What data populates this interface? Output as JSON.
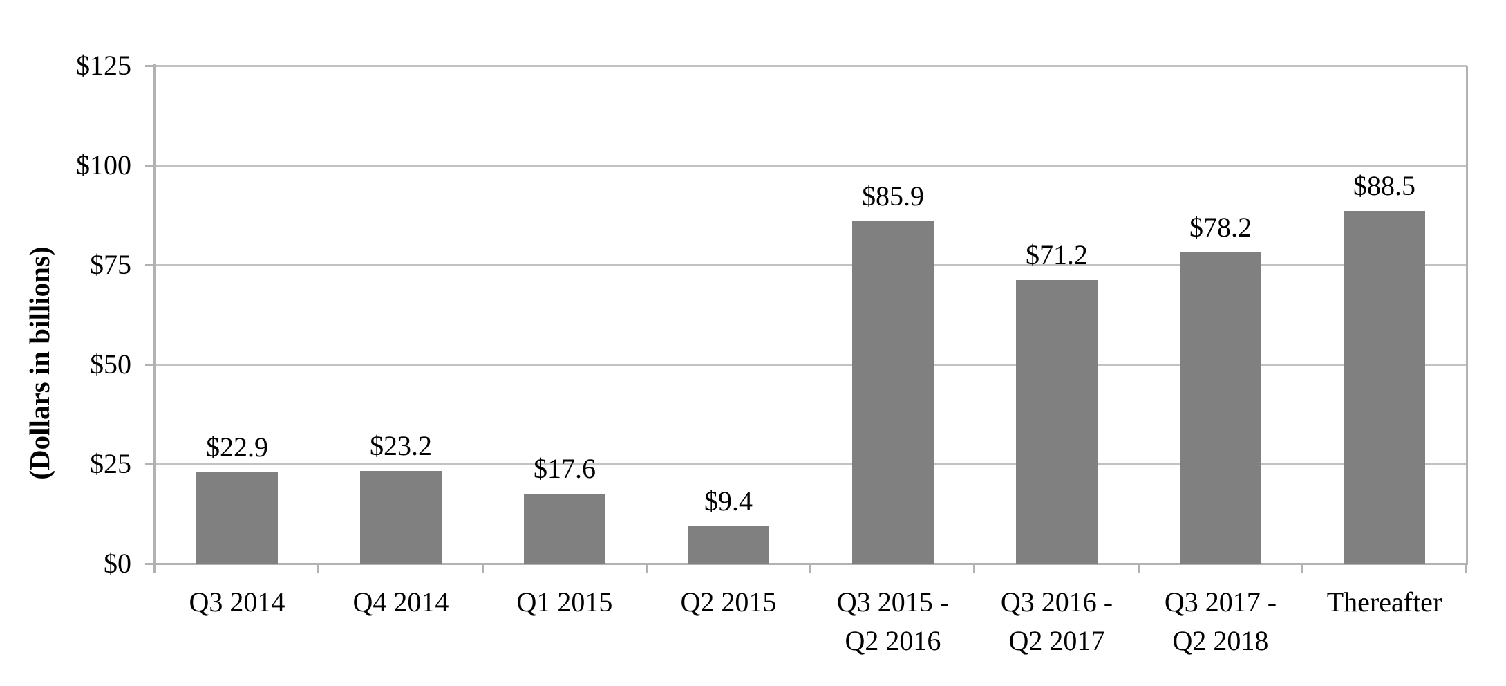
{
  "chart_data": {
    "type": "bar",
    "title": "",
    "xlabel": "",
    "ylabel": "(Dollars in billions)",
    "ylim": [
      0,
      125
    ],
    "y_tick_interval": 25,
    "y_ticks": [
      {
        "label": "$0",
        "value": 0
      },
      {
        "label": "$25",
        "value": 25
      },
      {
        "label": "$50",
        "value": 50
      },
      {
        "label": "$75",
        "value": 75
      },
      {
        "label": "$100",
        "value": 100
      },
      {
        "label": "$125",
        "value": 125
      }
    ],
    "categories": [
      "Q3 2014",
      "Q4 2014",
      "Q1 2015",
      "Q2 2015",
      "Q3 2015 -\nQ2 2016",
      "Q3 2016 -\nQ2 2017",
      "Q3 2017 -\nQ2 2018",
      "Thereafter"
    ],
    "values": [
      22.9,
      23.2,
      17.6,
      9.4,
      85.9,
      71.2,
      78.2,
      88.5
    ],
    "data_labels": [
      "$22.9",
      "$23.2",
      "$17.6",
      "$9.4",
      "$85.9",
      "$71.2",
      "$78.2",
      "$88.5"
    ],
    "grid": true,
    "legend": false,
    "plot_border": [
      "left",
      "bottom",
      "right"
    ],
    "colors": {
      "bar": "#808080",
      "gridline": "#c2c2c2",
      "axis": "#b2b2b2",
      "text": "#000000",
      "background": "#ffffff"
    }
  }
}
